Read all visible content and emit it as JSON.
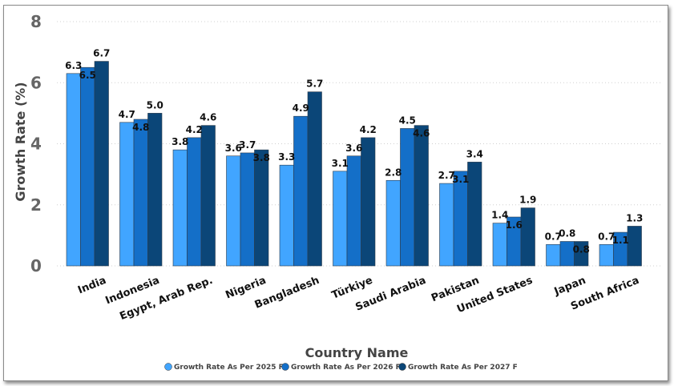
{
  "chart_data": {
    "type": "bar",
    "xlabel": "Country Name",
    "ylabel": "Growth Rate (%)",
    "ylim": [
      0,
      8
    ],
    "yticks": [
      0,
      2,
      4,
      6,
      8
    ],
    "grid": "horizontal dotted",
    "legend_position": "bottom-center",
    "categories": [
      "India",
      "Indonesia",
      "Egypt, Arab Rep.",
      "Nigeria",
      "Bangladesh",
      "Türkiye",
      "Saudi Arabia",
      "Pakistan",
      "United States",
      "Japan",
      "South Africa"
    ],
    "series": [
      {
        "name": "Growth Rate As Per 2025 F",
        "color": "#41A5FF",
        "values": [
          6.3,
          4.7,
          3.8,
          3.6,
          3.3,
          3.1,
          2.8,
          2.7,
          1.4,
          0.7,
          0.7
        ]
      },
      {
        "name": "Growth Rate As Per 2026 F",
        "color": "#146FC8",
        "values": [
          6.5,
          4.8,
          4.2,
          3.7,
          4.9,
          3.6,
          4.5,
          3.1,
          1.6,
          0.8,
          1.1
        ]
      },
      {
        "name": "Growth Rate As Per 2027 F",
        "color": "#0B4678",
        "values": [
          6.7,
          5.0,
          4.6,
          3.8,
          5.7,
          4.2,
          4.6,
          3.4,
          1.9,
          0.8,
          1.3
        ]
      }
    ],
    "data_labels": [
      [
        "6.3",
        "4.7",
        "3.8",
        "3.6",
        "3.3",
        "3.1",
        "2.8",
        "2.7",
        "1.4",
        "0.7",
        "0.7"
      ],
      [
        "6.5",
        "4.8",
        "4.2",
        "3.7",
        "4.9",
        "3.6",
        "4.5",
        "3.1",
        "1.6",
        "0.8",
        "1.1"
      ],
      [
        "6.7",
        "5.0",
        "4.6",
        "3.8",
        "5.7",
        "4.2",
        "4.6",
        "3.4",
        "1.9",
        "0.8",
        "1.3"
      ]
    ]
  }
}
